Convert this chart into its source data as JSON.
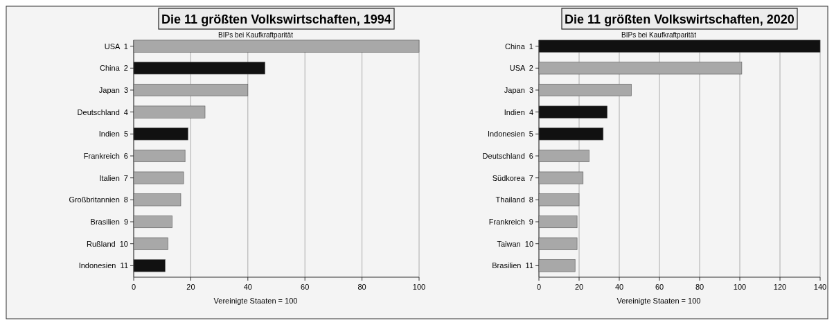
{
  "chart_data": [
    {
      "type": "bar",
      "orientation": "horizontal",
      "title": "Die 11 größten Volkswirtschaften, 1994",
      "subtitle": "BIPs bei Kaufkraftparität",
      "xlabel": "Vereinigte Staaten = 100",
      "categories": [
        "USA  1",
        "China  2",
        "Japan  3",
        "Deutschland  4",
        "Indien  5",
        "Frankreich  6",
        "Italien  7",
        "Großbritannien  8",
        "Brasilien  9",
        "Rußland  10",
        "Indonesien  11"
      ],
      "values": [
        100,
        46,
        40,
        25,
        19,
        18,
        17.5,
        16.5,
        13.5,
        12,
        11
      ],
      "colors": [
        "#a8a8a8",
        "#111111",
        "#a8a8a8",
        "#a8a8a8",
        "#111111",
        "#a8a8a8",
        "#a8a8a8",
        "#a8a8a8",
        "#a8a8a8",
        "#a8a8a8",
        "#111111"
      ],
      "xlim": [
        0,
        100
      ],
      "xticks": [
        0,
        20,
        40,
        60,
        80,
        100
      ],
      "grid": "x"
    },
    {
      "type": "bar",
      "orientation": "horizontal",
      "title": "Die 11 größten Volkswirtschaften, 2020",
      "subtitle": "BIPs bei Kaufkraftparität",
      "xlabel": "Vereinigte Staaten = 100",
      "categories": [
        "China  1",
        "USA  2",
        "Japan  3",
        "Indien  4",
        "Indonesien  5",
        "Deutschland  6",
        "Südkorea  7",
        "Thailand  8",
        "Frankreich  9",
        "Taiwan  10",
        "Brasilien  11"
      ],
      "values": [
        140,
        101,
        46,
        34,
        32,
        25,
        22,
        20,
        19,
        19,
        18
      ],
      "colors": [
        "#111111",
        "#a8a8a8",
        "#a8a8a8",
        "#111111",
        "#111111",
        "#a8a8a8",
        "#a8a8a8",
        "#a8a8a8",
        "#a8a8a8",
        "#a8a8a8",
        "#a8a8a8"
      ],
      "xlim": [
        0,
        140
      ],
      "xticks": [
        0,
        20,
        40,
        60,
        80,
        100,
        120,
        140
      ],
      "grid": "x"
    }
  ]
}
